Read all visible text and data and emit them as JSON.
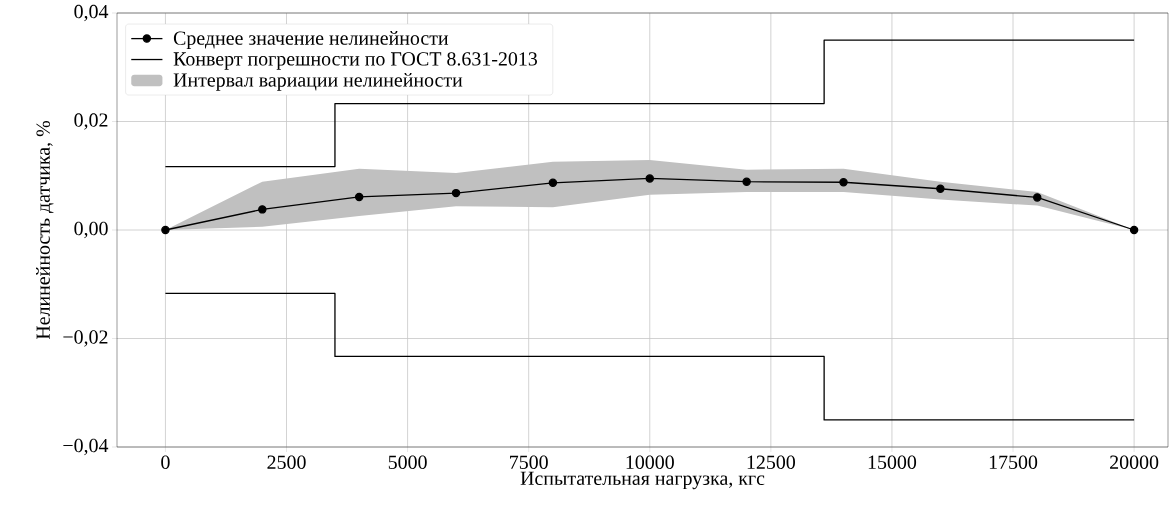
{
  "chart_data": {
    "type": "line",
    "xlabel": "Испытательная нагрузка, кгс",
    "ylabel": "Нелинейность датчика, %",
    "xlim": [
      -1000,
      20700
    ],
    "ylim": [
      -0.04,
      0.04
    ],
    "xticks": [
      0,
      2500,
      5000,
      7500,
      10000,
      12500,
      15000,
      17500,
      20000
    ],
    "yticks": [
      {
        "value": -0.04,
        "label": "−0,04"
      },
      {
        "value": -0.02,
        "label": "−0,02"
      },
      {
        "value": 0,
        "label": "0,00"
      },
      {
        "value": 0.02,
        "label": "0,02"
      },
      {
        "value": 0.04,
        "label": "0,04"
      }
    ],
    "grid": true,
    "legend": "top left",
    "series": [
      {
        "name": "Среднее значение нелинейности",
        "color": "#000000",
        "marker": "circle",
        "x": [
          0,
          2000,
          4000,
          6000,
          8000,
          10000,
          12000,
          14000,
          16000,
          18000,
          20000
        ],
        "values": [
          0,
          0.0038,
          0.0061,
          0.0068,
          0.0087,
          0.0095,
          0.0089,
          0.0088,
          0.0076,
          0.006,
          0
        ],
        "lower": [
          0,
          0.0006,
          0.0026,
          0.0044,
          0.0042,
          0.0065,
          0.007,
          0.007,
          0.0056,
          0.0045,
          0
        ],
        "upper": [
          0,
          0.0089,
          0.0113,
          0.0105,
          0.0126,
          0.0129,
          0.0111,
          0.0113,
          0.0089,
          0.007,
          0
        ]
      },
      {
        "name": "Конверт погрешности по ГОСТ 8.631-2013",
        "type": "step",
        "color": "#000000",
        "x": [
          0,
          3500,
          13600,
          20000
        ],
        "values": [
          0.0117,
          0.0233,
          0.035,
          0.035
        ]
      },
      {
        "type": "step",
        "color": "#000000",
        "x": [
          0,
          3500,
          13600,
          20000
        ],
        "values": [
          -0.0117,
          -0.0233,
          -0.035,
          -0.035
        ]
      },
      {
        "name": "Интервал вариации нелинейности",
        "type": "area",
        "color": "#c0c0c0"
      }
    ]
  }
}
